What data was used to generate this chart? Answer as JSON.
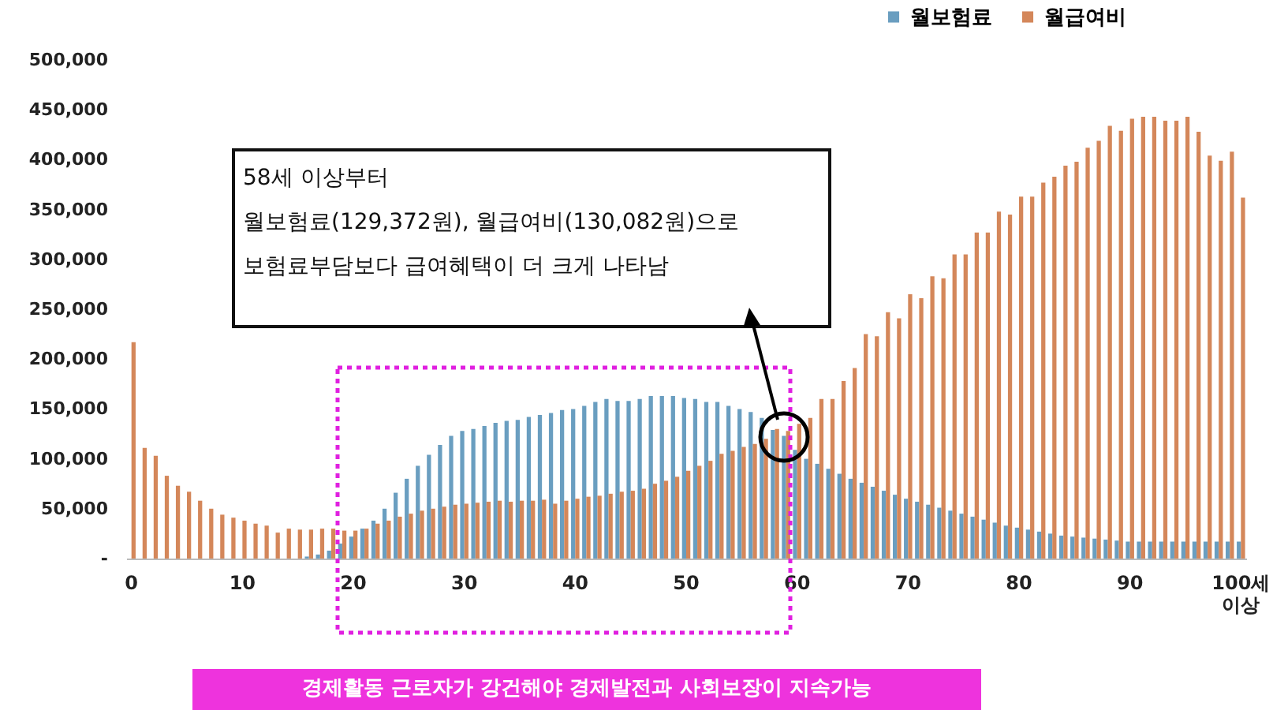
{
  "chart_data": {
    "type": "bar",
    "categories": [
      "0",
      null,
      null,
      null,
      null,
      null,
      null,
      null,
      null,
      null,
      "10",
      null,
      null,
      null,
      null,
      null,
      null,
      null,
      null,
      null,
      "20",
      null,
      null,
      null,
      null,
      null,
      null,
      null,
      null,
      null,
      "30",
      null,
      null,
      null,
      null,
      null,
      null,
      null,
      null,
      null,
      "40",
      null,
      null,
      null,
      null,
      null,
      null,
      null,
      null,
      null,
      "50",
      null,
      null,
      null,
      null,
      null,
      null,
      null,
      null,
      null,
      "60",
      null,
      null,
      null,
      null,
      null,
      null,
      null,
      null,
      null,
      "70",
      null,
      null,
      null,
      null,
      null,
      null,
      null,
      null,
      null,
      "80",
      null,
      null,
      null,
      null,
      null,
      null,
      null,
      null,
      null,
      "90",
      null,
      null,
      null,
      null,
      null,
      null,
      null,
      null,
      null,
      "100세\n이상"
    ],
    "series": [
      {
        "name": "월보험료",
        "color": "#6a9ec0",
        "values": [
          0,
          0,
          0,
          0,
          0,
          0,
          0,
          0,
          0,
          0,
          0,
          0,
          0,
          0,
          0,
          0,
          2000,
          4000,
          8000,
          15000,
          22000,
          30000,
          38000,
          50000,
          66000,
          80000,
          93000,
          104000,
          114000,
          123000,
          128000,
          130000,
          133000,
          136000,
          138000,
          139000,
          142000,
          144000,
          146000,
          149000,
          150000,
          153000,
          157000,
          160000,
          158000,
          158000,
          160000,
          163000,
          163000,
          163000,
          161000,
          160000,
          157000,
          157000,
          153000,
          150000,
          147000,
          141000,
          129000,
          123000,
          109000,
          100000,
          95000,
          90000,
          85000,
          80000,
          76000,
          72000,
          68000,
          64000,
          60000,
          57000,
          54000,
          51000,
          48000,
          45000,
          42000,
          39000,
          36000,
          33000,
          31000,
          29000,
          27000,
          25000,
          23000,
          22000,
          21000,
          20000,
          19000,
          18000,
          17000,
          17000,
          17000,
          17000,
          17000,
          17000,
          17000,
          17000,
          17000,
          17000,
          17000
        ]
      },
      {
        "name": "월급여비",
        "color": "#d4875a",
        "values": [
          217000,
          111000,
          103000,
          83000,
          73000,
          67000,
          58000,
          50000,
          44000,
          41000,
          38000,
          35000,
          33000,
          26000,
          30000,
          29000,
          29000,
          30000,
          30000,
          28000,
          28000,
          30000,
          35000,
          38000,
          42000,
          45000,
          48000,
          50000,
          52000,
          54000,
          55000,
          56000,
          57000,
          58000,
          57000,
          58000,
          58000,
          59000,
          55000,
          58000,
          60000,
          62000,
          63000,
          65000,
          67000,
          68000,
          70000,
          75000,
          78000,
          82000,
          88000,
          93000,
          98000,
          105000,
          108000,
          112000,
          115000,
          120000,
          130000,
          128000,
          135000,
          141000,
          160000,
          160000,
          178000,
          191000,
          225000,
          223000,
          247000,
          241000,
          265000,
          261000,
          283000,
          281000,
          305000,
          305000,
          327000,
          327000,
          348000,
          345000,
          363000,
          363000,
          377000,
          383000,
          394000,
          398000,
          412000,
          419000,
          434000,
          429000,
          441000,
          443000,
          443000,
          439000,
          439000,
          443000,
          428000,
          404000,
          399000,
          408000,
          362000
        ]
      }
    ],
    "ylim": [
      0,
      500000
    ],
    "yticks": [
      {
        "value": 0,
        "label": "-"
      },
      {
        "value": 50000,
        "label": "50,000"
      },
      {
        "value": 100000,
        "label": "100,000"
      },
      {
        "value": 150000,
        "label": "150,000"
      },
      {
        "value": 200000,
        "label": "200,000"
      },
      {
        "value": 250000,
        "label": "250,000"
      },
      {
        "value": 300000,
        "label": "300,000"
      },
      {
        "value": 350000,
        "label": "350,000"
      },
      {
        "value": 400000,
        "label": "400,000"
      },
      {
        "value": 450000,
        "label": "450,000"
      },
      {
        "value": 500000,
        "label": "500,000"
      }
    ],
    "grid": false,
    "legend": "top right",
    "annotations": [
      "58세 이상부터\n월보험료(129,372원), 월급여비(130,082원)으로\n보험료부담보다 급여혜택이 더 크게 나타남",
      "경제활동 근로자가 강건해야 경제발전과 사회보장이 지속가능"
    ]
  }
}
